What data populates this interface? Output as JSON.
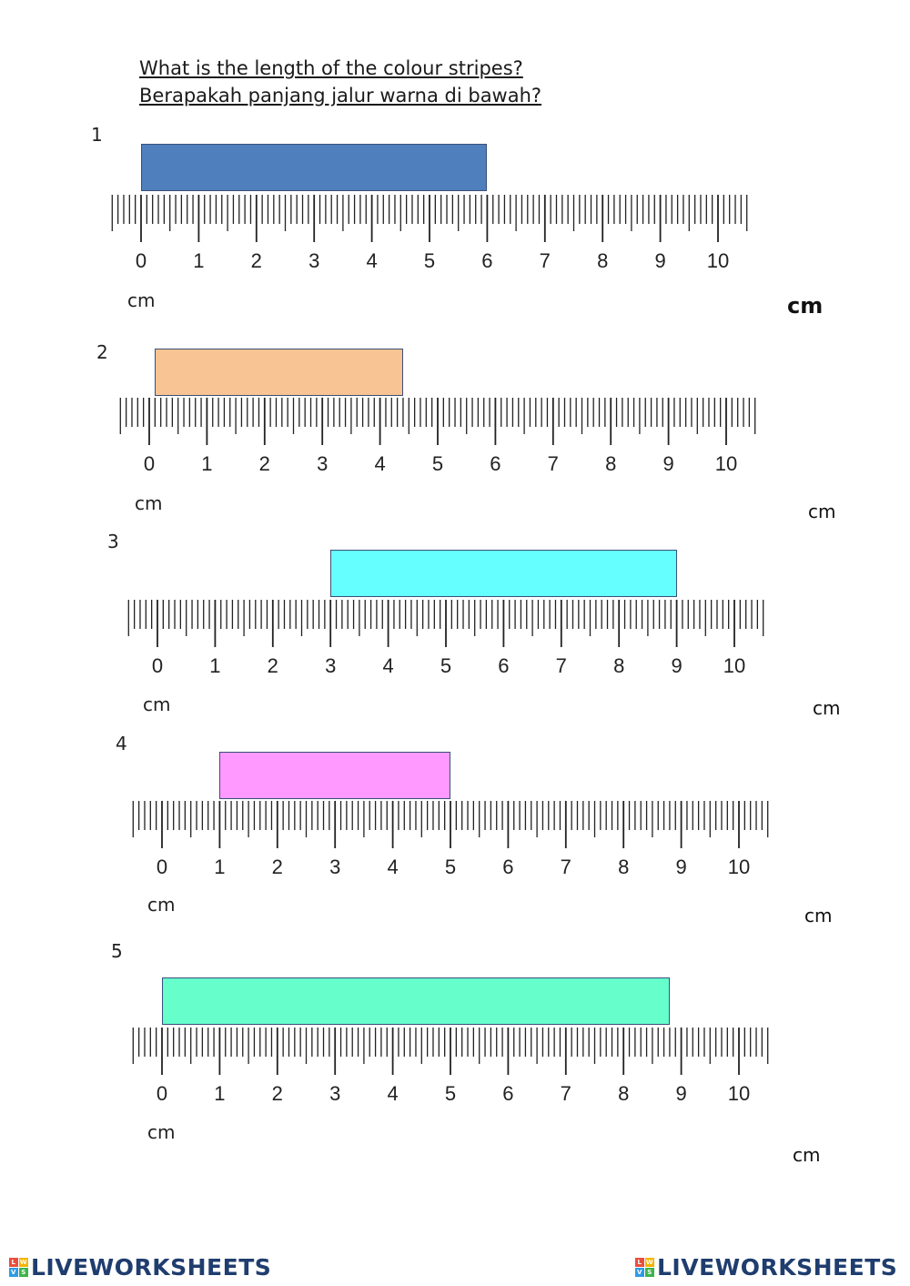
{
  "instructions": {
    "line_en": "What is the length of the colour stripes?",
    "line_ms": "Berapakah panjang jalur warna di bawah?"
  },
  "ruler": {
    "tick_labels": [
      "0",
      "1",
      "2",
      "3",
      "4",
      "5",
      "6",
      "7",
      "8",
      "9",
      "10"
    ],
    "unit_label": "cm"
  },
  "questions": [
    {
      "number": "1",
      "stripe_start_cm": 0,
      "stripe_end_cm": 6,
      "stripe_color": "#4f7fbd",
      "answer_unit": "cm"
    },
    {
      "number": "2",
      "stripe_start_cm": 0.1,
      "stripe_end_cm": 4.4,
      "stripe_color": "#f8c493",
      "answer_unit": "cm"
    },
    {
      "number": "3",
      "stripe_start_cm": 3,
      "stripe_end_cm": 9,
      "stripe_color": "#66ffff",
      "answer_unit": "cm"
    },
    {
      "number": "4",
      "stripe_start_cm": 1,
      "stripe_end_cm": 5,
      "stripe_color": "#ff99ff",
      "answer_unit": "cm"
    },
    {
      "number": "5",
      "stripe_start_cm": 0,
      "stripe_end_cm": 8.8,
      "stripe_color": "#66ffcc",
      "answer_unit": "cm"
    }
  ],
  "footer": {
    "brand_left": "LIVEWORKSHEETS",
    "brand_right": "LIVEWORKSHEETS",
    "logo_letters": [
      "L",
      "W",
      "V",
      "S"
    ]
  }
}
